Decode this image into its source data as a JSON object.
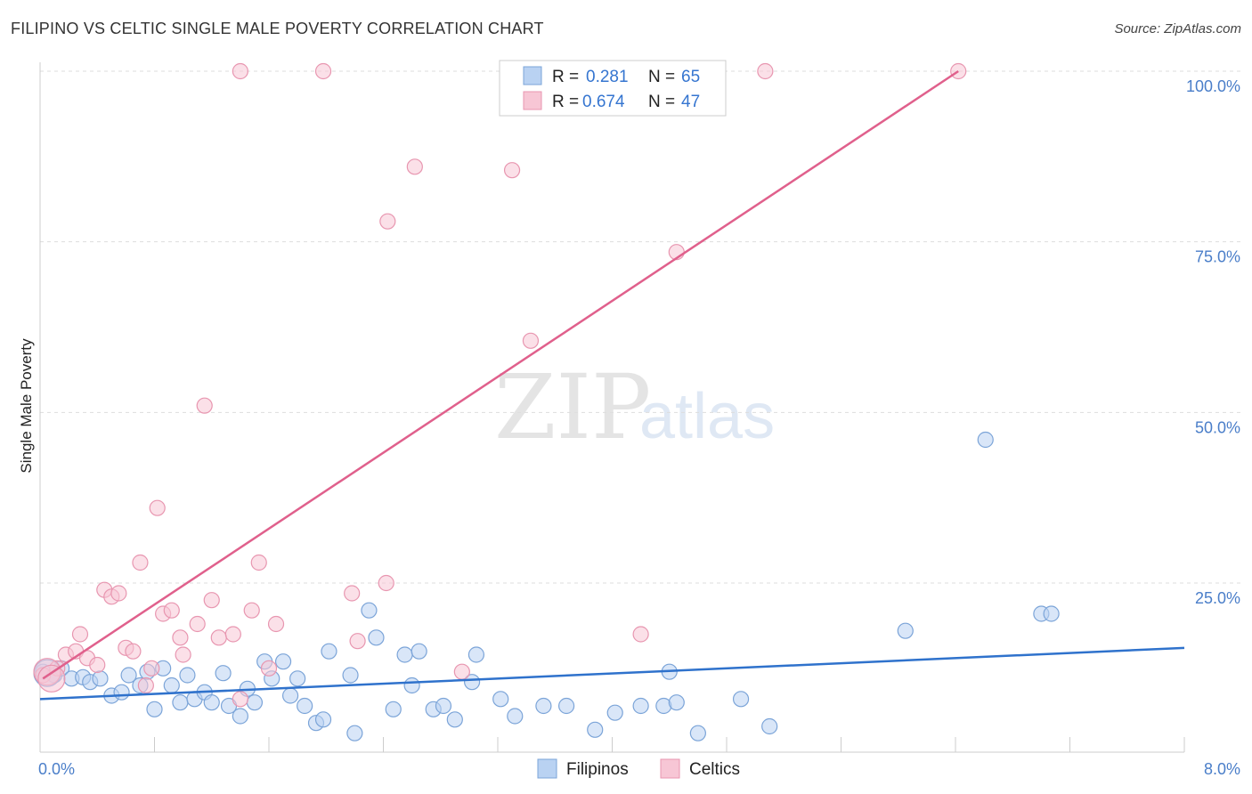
{
  "title": "FILIPINO VS CELTIC SINGLE MALE POVERTY CORRELATION CHART",
  "source": "Source: ZipAtlas.com",
  "watermark": {
    "zip": "ZIP",
    "atlas": "atlas"
  },
  "colors": {
    "blue_fill": "#b9d2f2",
    "blue_stroke": "#7ba4d8",
    "blue_line": "#2f72cc",
    "pink_fill": "#f7c6d5",
    "pink_stroke": "#e896b0",
    "pink_line": "#e0608c",
    "tick_text": "#4a7ec9",
    "grid": "#dddddd"
  },
  "legend": {
    "r_label": "R =",
    "n_label": "N =",
    "rows": [
      {
        "r": "0.281",
        "n": "65"
      },
      {
        "r": "0.674",
        "n": "47"
      }
    ]
  },
  "chart_data": {
    "type": "scatter",
    "title": "FILIPINO VS CELTIC SINGLE MALE POVERTY CORRELATION CHART",
    "xlabel": "",
    "ylabel": "Single Male Poverty",
    "xlim": [
      0,
      8
    ],
    "ylim": [
      0,
      105
    ],
    "x_tick_labels": [
      "0.0%",
      "8.0%"
    ],
    "y_ticks": [
      25,
      50,
      75,
      100
    ],
    "y_tick_labels": [
      "25.0%",
      "50.0%",
      "75.0%",
      "100.0%"
    ],
    "grid": true,
    "legend_position": "top-center",
    "series": [
      {
        "name": "Filipinos",
        "color": "#b9d2f2",
        "trend": {
          "x": [
            0,
            8
          ],
          "y": [
            8.0,
            15.5
          ]
        },
        "points": [
          [
            0.02,
            12.0
          ],
          [
            0.1,
            11.5
          ],
          [
            0.15,
            12.5
          ],
          [
            0.22,
            11.0
          ],
          [
            0.3,
            11.2
          ],
          [
            0.35,
            10.5
          ],
          [
            0.42,
            11.0
          ],
          [
            0.5,
            8.5
          ],
          [
            0.57,
            9.0
          ],
          [
            0.62,
            11.5
          ],
          [
            0.7,
            10.0
          ],
          [
            0.75,
            12.0
          ],
          [
            0.8,
            6.5
          ],
          [
            0.86,
            12.5
          ],
          [
            0.92,
            10.0
          ],
          [
            0.98,
            7.5
          ],
          [
            1.03,
            11.5
          ],
          [
            1.08,
            8.0
          ],
          [
            1.15,
            9.0
          ],
          [
            1.2,
            7.5
          ],
          [
            1.28,
            11.8
          ],
          [
            1.32,
            7.0
          ],
          [
            1.4,
            5.5
          ],
          [
            1.45,
            9.5
          ],
          [
            1.5,
            7.5
          ],
          [
            1.57,
            13.5
          ],
          [
            1.62,
            11.0
          ],
          [
            1.7,
            13.5
          ],
          [
            1.75,
            8.5
          ],
          [
            1.8,
            11.0
          ],
          [
            1.85,
            7.0
          ],
          [
            1.93,
            4.5
          ],
          [
            1.98,
            5.0
          ],
          [
            2.02,
            15.0
          ],
          [
            2.2,
            3.0
          ],
          [
            2.17,
            11.5
          ],
          [
            2.3,
            21.0
          ],
          [
            2.35,
            17.0
          ],
          [
            2.47,
            6.5
          ],
          [
            2.55,
            14.5
          ],
          [
            2.6,
            10.0
          ],
          [
            2.65,
            15.0
          ],
          [
            2.75,
            6.5
          ],
          [
            2.82,
            7.0
          ],
          [
            2.9,
            5.0
          ],
          [
            3.02,
            10.5
          ],
          [
            3.05,
            14.5
          ],
          [
            3.22,
            8.0
          ],
          [
            3.32,
            5.5
          ],
          [
            3.52,
            7.0
          ],
          [
            3.68,
            7.0
          ],
          [
            3.88,
            3.5
          ],
          [
            4.02,
            6.0
          ],
          [
            4.2,
            7.0
          ],
          [
            4.36,
            7.0
          ],
          [
            4.4,
            12.0
          ],
          [
            4.45,
            7.5
          ],
          [
            4.6,
            3.0
          ],
          [
            4.9,
            8.0
          ],
          [
            5.1,
            4.0
          ],
          [
            6.05,
            18.0
          ],
          [
            6.61,
            46.0
          ],
          [
            7.0,
            20.5
          ],
          [
            7.07,
            20.5
          ],
          [
            0.05,
            11.8
          ]
        ]
      },
      {
        "name": "Celtics",
        "color": "#f7c6d5",
        "trend": {
          "x": [
            0.02,
            6.42
          ],
          "y": [
            11.0,
            100.0
          ]
        },
        "points": [
          [
            0.02,
            11.5
          ],
          [
            0.12,
            12.5
          ],
          [
            0.18,
            14.5
          ],
          [
            0.25,
            15.0
          ],
          [
            0.28,
            17.5
          ],
          [
            0.33,
            14.0
          ],
          [
            0.4,
            13.0
          ],
          [
            0.45,
            24.0
          ],
          [
            0.5,
            23.0
          ],
          [
            0.55,
            23.5
          ],
          [
            0.6,
            15.5
          ],
          [
            0.65,
            15.0
          ],
          [
            0.7,
            28.0
          ],
          [
            0.74,
            10.0
          ],
          [
            0.78,
            12.5
          ],
          [
            0.82,
            36.0
          ],
          [
            0.86,
            20.5
          ],
          [
            0.92,
            21.0
          ],
          [
            0.98,
            17.0
          ],
          [
            1.0,
            14.5
          ],
          [
            1.1,
            19.0
          ],
          [
            1.15,
            51.0
          ],
          [
            1.2,
            22.5
          ],
          [
            1.25,
            17.0
          ],
          [
            1.35,
            17.5
          ],
          [
            1.4,
            8.0
          ],
          [
            1.48,
            21.0
          ],
          [
            1.53,
            28.0
          ],
          [
            1.6,
            12.5
          ],
          [
            1.65,
            19.0
          ],
          [
            2.18,
            23.5
          ],
          [
            2.22,
            16.5
          ],
          [
            2.42,
            25.0
          ],
          [
            2.43,
            78.0
          ],
          [
            2.62,
            86.0
          ],
          [
            2.95,
            12.0
          ],
          [
            3.3,
            85.5
          ],
          [
            3.43,
            60.5
          ],
          [
            4.2,
            17.5
          ],
          [
            4.45,
            73.5
          ],
          [
            1.4,
            100.0
          ],
          [
            1.98,
            100.0
          ],
          [
            4.2,
            100.0
          ],
          [
            5.07,
            100.0
          ],
          [
            6.42,
            100.0
          ],
          [
            0.05,
            12.0
          ],
          [
            0.08,
            11.0
          ]
        ]
      }
    ]
  }
}
